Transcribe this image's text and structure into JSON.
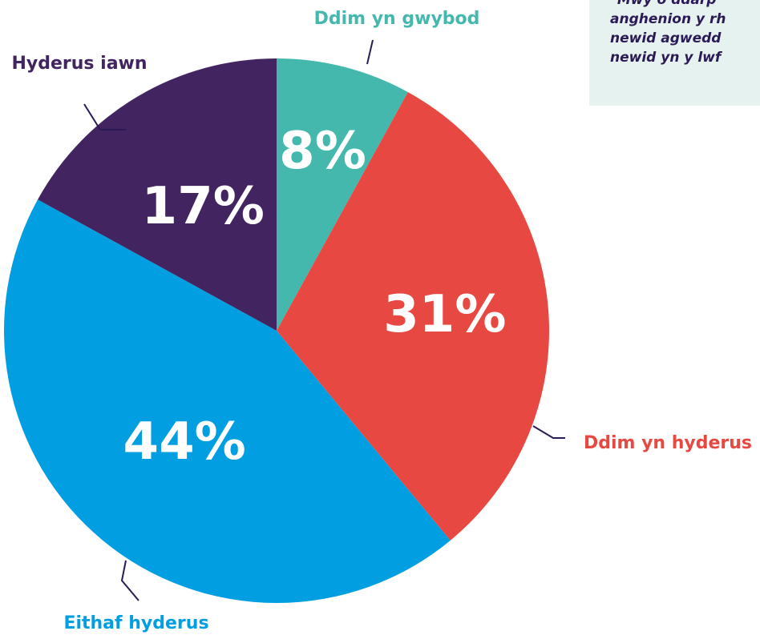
{
  "colors": {
    "ddim_yn_gwybod": "#45b8ad",
    "ddim_yn_hyderus": "#e84842",
    "eithaf_hyderus": "#019fe1",
    "hyderus_iawn": "#422461",
    "leader": "#2a1a55"
  },
  "chart_data": {
    "type": "pie",
    "slices": [
      {
        "label": "Ddim yn gwybod",
        "value": 8,
        "value_label": "8%",
        "color": "#45b8ad"
      },
      {
        "label": "Ddim yn hyderus",
        "value": 31,
        "value_label": "31%",
        "color": "#e84842"
      },
      {
        "label": "Eithaf hyderus",
        "value": 44,
        "value_label": "44%",
        "color": "#019fe1"
      },
      {
        "label": "Hyderus iawn",
        "value": 17,
        "value_label": "17%",
        "color": "#422461"
      }
    ],
    "start_angle": "12 o'clock",
    "direction": "clockwise"
  },
  "quote": {
    "lines": [
      "\"Mwy o ddarp",
      "anghenion y rh",
      "newid agwedd",
      "newid yn y lwf"
    ]
  }
}
